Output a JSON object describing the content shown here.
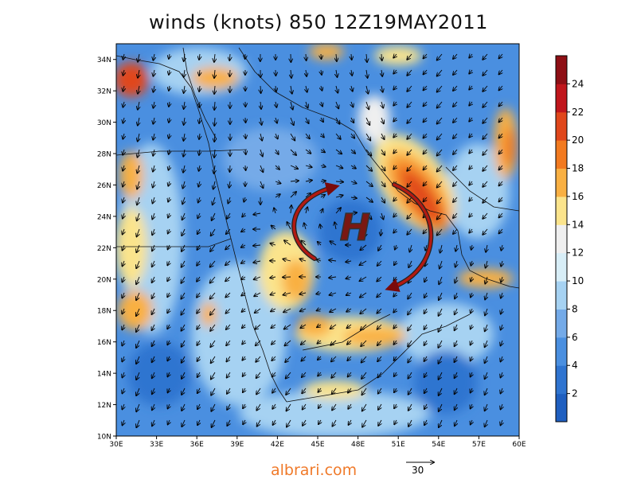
{
  "title": "winds (knots) 850 12Z19MAY2011",
  "watermark": "albrari.com",
  "reference_vector_label": "30",
  "pressure_center_label": "H",
  "lat_ticks": [
    "10N",
    "12N",
    "14N",
    "16N",
    "18N",
    "20N",
    "22N",
    "24N",
    "26N",
    "28N",
    "30N",
    "32N",
    "34N"
  ],
  "lon_ticks": [
    "30E",
    "33E",
    "36E",
    "39E",
    "42E",
    "45E",
    "48E",
    "51E",
    "54E",
    "57E",
    "60E"
  ],
  "colorbar": {
    "labels": [
      "2",
      "4",
      "6",
      "8",
      "10",
      "12",
      "14",
      "16",
      "18",
      "20",
      "22",
      "24"
    ],
    "colors": [
      "#1f5fc0",
      "#2f74d0",
      "#4a8fe0",
      "#74aae8",
      "#a6d2f2",
      "#d8eef7",
      "#efefef",
      "#fbe48c",
      "#f9b043",
      "#f27a20",
      "#e0471b",
      "#c0161c",
      "#8e0f15"
    ]
  },
  "chart_data": {
    "type": "heatmap",
    "variable": "wind speed (knots)",
    "level": "850",
    "time": "12Z19MAY2011",
    "lon_range": [
      30,
      60
    ],
    "lat_range": [
      10,
      35
    ],
    "wind_speed_bins": [
      0,
      2,
      4,
      6,
      8,
      10,
      12,
      14,
      16,
      18,
      20,
      22,
      24,
      26
    ]
  }
}
